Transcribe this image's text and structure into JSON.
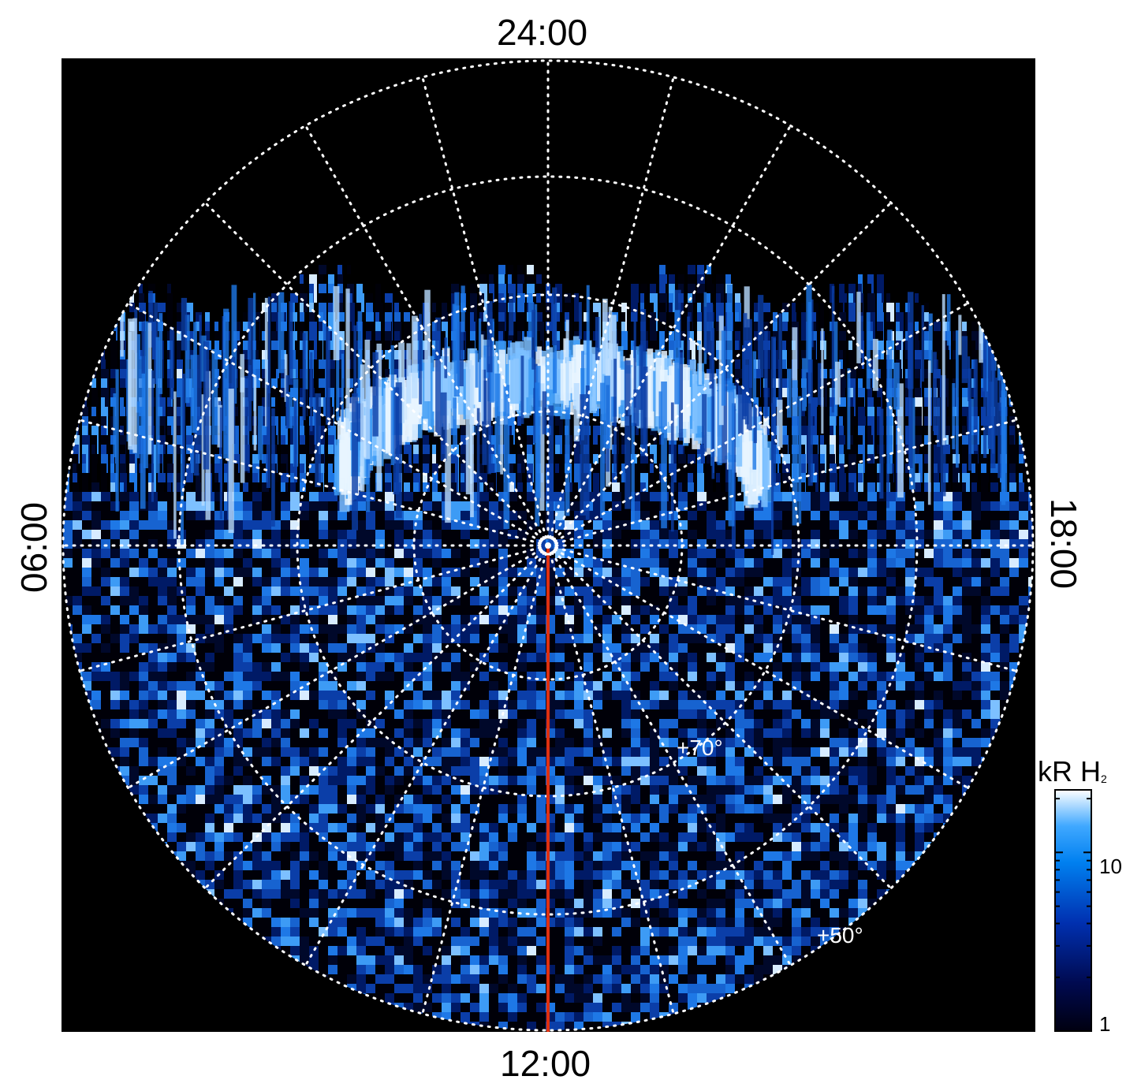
{
  "figure": {
    "local_time_labels": {
      "top": "24:00",
      "bottom": "12:00",
      "left": "06:00",
      "right": "18:00"
    },
    "latitude_labels": [
      "+70°",
      "+50°"
    ],
    "colorbar": {
      "title": "kR H",
      "title_subscript": "2",
      "tick_labels": [
        "10",
        "1"
      ],
      "scale": "log",
      "colors": [
        "#000010",
        "#000a50",
        "#0030b0",
        "#0080f0",
        "#40a8ff",
        "#ffffff"
      ]
    },
    "colors": {
      "background": "#000000",
      "grid": "#ffffff",
      "meridian_line": "#e03010",
      "auroral_bright": "#e8f4ff",
      "auroral_mid": "#1e78e6"
    }
  }
}
